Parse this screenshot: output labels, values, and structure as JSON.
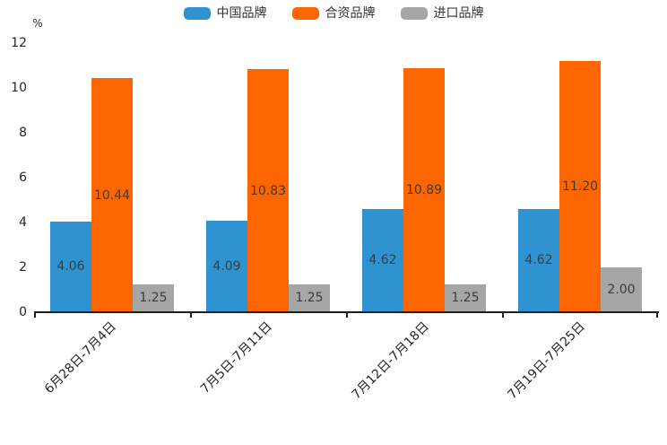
{
  "chart_data": {
    "type": "bar",
    "title": "",
    "categories": [
      "6月28日-7月4日",
      "7月5日-7月11日",
      "7月12日-7月18日",
      "7月19日-7月25日"
    ],
    "series": [
      {
        "name": "中国品牌",
        "color": "#3093d1",
        "values": [
          4.06,
          4.09,
          4.62,
          4.62
        ]
      },
      {
        "name": "合资品牌",
        "color": "#fd6500",
        "values": [
          10.44,
          10.83,
          10.89,
          11.2
        ]
      },
      {
        "name": "进口品牌",
        "color": "#a6a6a6",
        "values": [
          1.25,
          1.25,
          1.25,
          2.0
        ]
      }
    ],
    "value_labels": [
      [
        "4.06",
        "4.09",
        "4.62",
        "4.62"
      ],
      [
        "10.44",
        "10.83",
        "10.89",
        "11.20"
      ],
      [
        "1.25",
        "1.25",
        "1.25",
        "2.00"
      ]
    ],
    "xlabel": "",
    "ylabel": "%",
    "ylim": [
      0,
      12
    ],
    "yticks": [
      "0",
      "2",
      "4",
      "6",
      "8",
      "10",
      "12"
    ],
    "grid": false,
    "legend_position": "top-center",
    "colors": {
      "axis": "#1f1f1f",
      "tick_text": "#262626",
      "value_text": "#3c3c3c",
      "background": "#ffffff"
    }
  }
}
